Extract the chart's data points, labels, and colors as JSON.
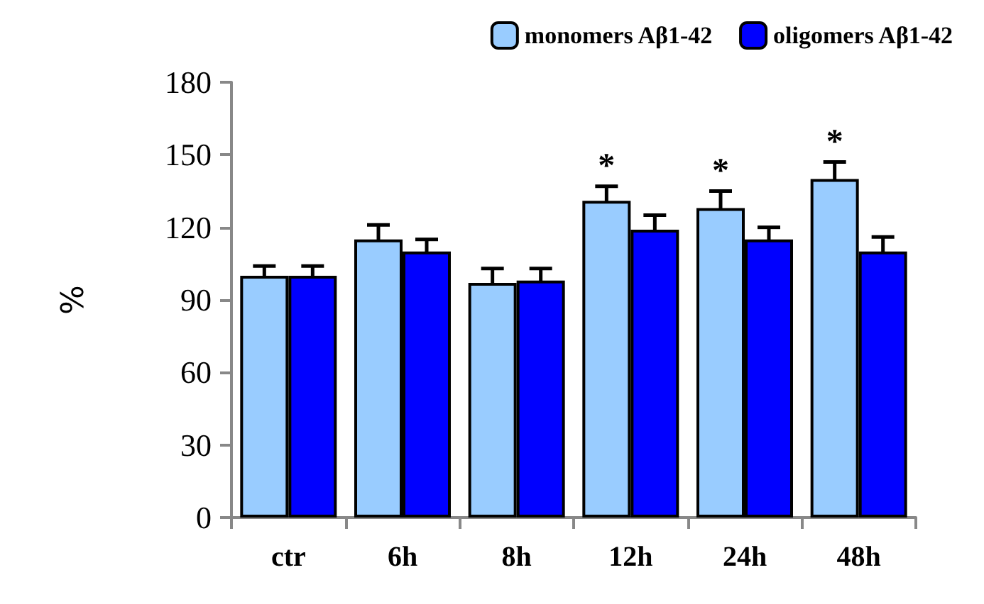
{
  "chart_data": {
    "type": "bar",
    "ylabel": "%",
    "categories": [
      "ctr",
      "6h",
      "8h",
      "12h",
      "24h",
      "48h"
    ],
    "series": [
      {
        "name": "monomers Aβ1-42",
        "color": "#99ccff",
        "values": [
          100,
          115,
          97,
          131,
          128,
          140
        ],
        "errors": [
          4,
          6,
          6,
          6,
          7,
          7
        ]
      },
      {
        "name": "oligomers Aβ1-42",
        "color": "#0000ff",
        "values": [
          100,
          110,
          98,
          119,
          115,
          110
        ],
        "errors": [
          4,
          5,
          5,
          6,
          5,
          6
        ]
      }
    ],
    "ylim": [
      0,
      180
    ],
    "yticks": [
      0,
      30,
      60,
      90,
      120,
      150,
      180
    ],
    "grid": false,
    "legend": "top right",
    "annotations": [
      {
        "text": "*",
        "x": "12h",
        "y": 131
      },
      {
        "text": "*",
        "x": "24h",
        "y": 128
      },
      {
        "text": "*",
        "x": "48h",
        "y": 140
      }
    ]
  }
}
